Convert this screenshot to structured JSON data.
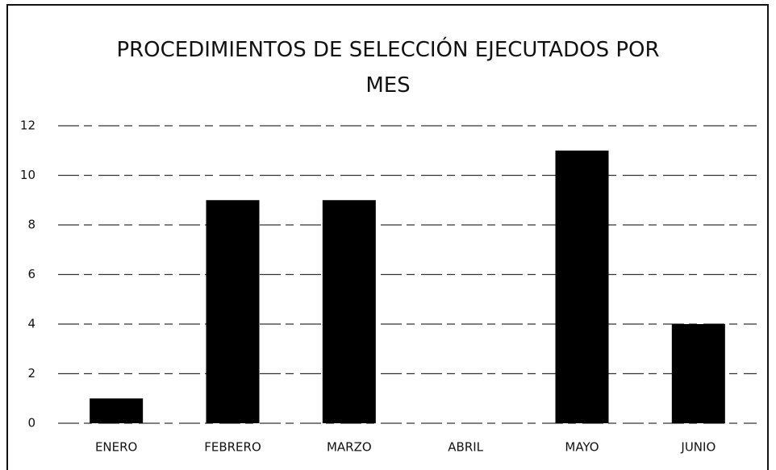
{
  "chart_data": {
    "type": "bar",
    "title": "PROCEDIMIENTOS DE SELECCIÓN EJECUTADOS POR MES",
    "categories": [
      "ENERO",
      "FEBRERO",
      "MARZO",
      "ABRIL",
      "MAYO",
      "JUNIO"
    ],
    "values": [
      1,
      9,
      9,
      0,
      11,
      4
    ],
    "color": "#000000",
    "ylim": [
      0,
      12
    ],
    "yticks": [
      0,
      2,
      4,
      6,
      8,
      10,
      12
    ],
    "grid": true
  }
}
